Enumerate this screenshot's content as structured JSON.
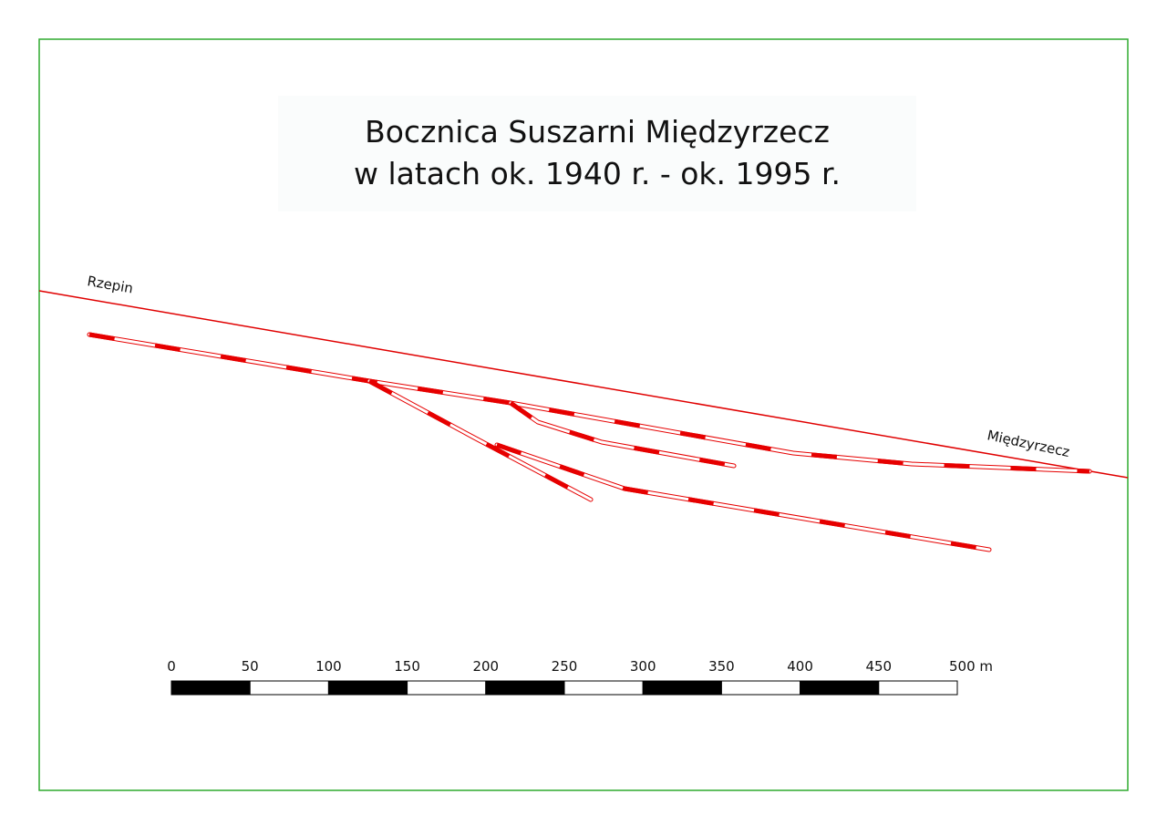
{
  "title": {
    "line1": "Bocznica Suszarni Międzyrzecz",
    "line2": "w latach ok. 1940 r. - ok. 1995 r."
  },
  "places": {
    "west": "Rzepin",
    "east": "Międzyrzecz"
  },
  "scale_bar": {
    "labels": [
      "0",
      "50",
      "100",
      "150",
      "200",
      "250",
      "300",
      "350",
      "400",
      "450",
      "500 m"
    ]
  },
  "colors": {
    "frame": "#2eaa2e",
    "track": "#e60000",
    "mainline": "#e00000"
  }
}
